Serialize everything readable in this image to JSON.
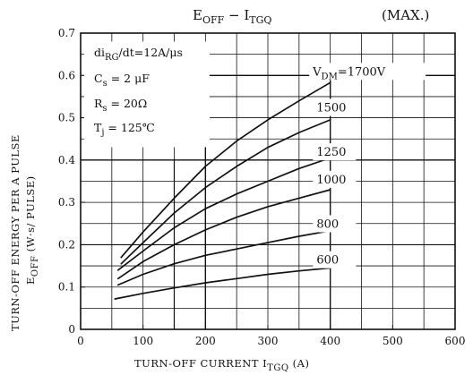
{
  "chart_data": {
    "type": "line",
    "title": {
      "main": "E",
      "main_sub": "OFF",
      "sep": " − I",
      "sep_sub": "TGQ",
      "suffix": "(MAX.)"
    },
    "xlabel": {
      "main": "TURN-OFF CURRENT  I",
      "sub": "TGQ",
      "suffix": " (A)"
    },
    "ylabel": {
      "line1": "TURN-OFF ENERGY PER A PULSE",
      "line2_main": "E",
      "line2_sub": "OFF",
      "line2_suffix": " (W·s/ PULSE)"
    },
    "xlim": [
      0,
      600
    ],
    "ylim": [
      0,
      0.7
    ],
    "x_ticks": [
      "0",
      "100",
      "200",
      "300",
      "400",
      "500",
      "600"
    ],
    "y_ticks": [
      "0",
      "0.1",
      "0.2",
      "0.3",
      "0.4",
      "0.5",
      "0.6",
      "0.7"
    ],
    "conditions": [
      {
        "main": "di",
        "sub": "RG",
        "rest": "/dt=12A/μs"
      },
      {
        "main": "C",
        "sub": "s",
        "rest": " = 2 μF"
      },
      {
        "main": "R",
        "sub": "s",
        "rest": " = 20Ω"
      },
      {
        "main": "T",
        "sub": "j",
        "rest": " = 125℃"
      }
    ],
    "series": [
      {
        "label_prefix": "V",
        "label_sub": "DM",
        "label": "=1700V",
        "x": [
          65,
          100,
          150,
          200,
          250,
          300,
          350,
          400
        ],
        "y": [
          0.17,
          0.23,
          0.31,
          0.385,
          0.445,
          0.495,
          0.54,
          0.583
        ]
      },
      {
        "label_prefix": "",
        "label_sub": "",
        "label": "1500",
        "x": [
          65,
          100,
          150,
          200,
          250,
          300,
          350,
          400
        ],
        "y": [
          0.155,
          0.205,
          0.275,
          0.335,
          0.385,
          0.43,
          0.465,
          0.495
        ]
      },
      {
        "label_prefix": "",
        "label_sub": "",
        "label": "1250",
        "x": [
          60,
          100,
          150,
          200,
          250,
          300,
          350,
          400
        ],
        "y": [
          0.14,
          0.185,
          0.24,
          0.285,
          0.32,
          0.35,
          0.38,
          0.405
        ]
      },
      {
        "label_prefix": "",
        "label_sub": "",
        "label": "1000",
        "x": [
          60,
          100,
          150,
          200,
          250,
          300,
          350,
          400
        ],
        "y": [
          0.12,
          0.16,
          0.2,
          0.235,
          0.265,
          0.29,
          0.31,
          0.33
        ]
      },
      {
        "label_prefix": "",
        "label_sub": "",
        "label": "800",
        "x": [
          60,
          100,
          150,
          200,
          250,
          300,
          350,
          400
        ],
        "y": [
          0.105,
          0.13,
          0.155,
          0.175,
          0.19,
          0.205,
          0.22,
          0.233
        ]
      },
      {
        "label_prefix": "",
        "label_sub": "",
        "label": "600",
        "x": [
          55,
          100,
          150,
          200,
          250,
          300,
          350,
          400
        ],
        "y": [
          0.072,
          0.085,
          0.098,
          0.11,
          0.12,
          0.13,
          0.138,
          0.145
        ]
      }
    ],
    "grid": true
  }
}
